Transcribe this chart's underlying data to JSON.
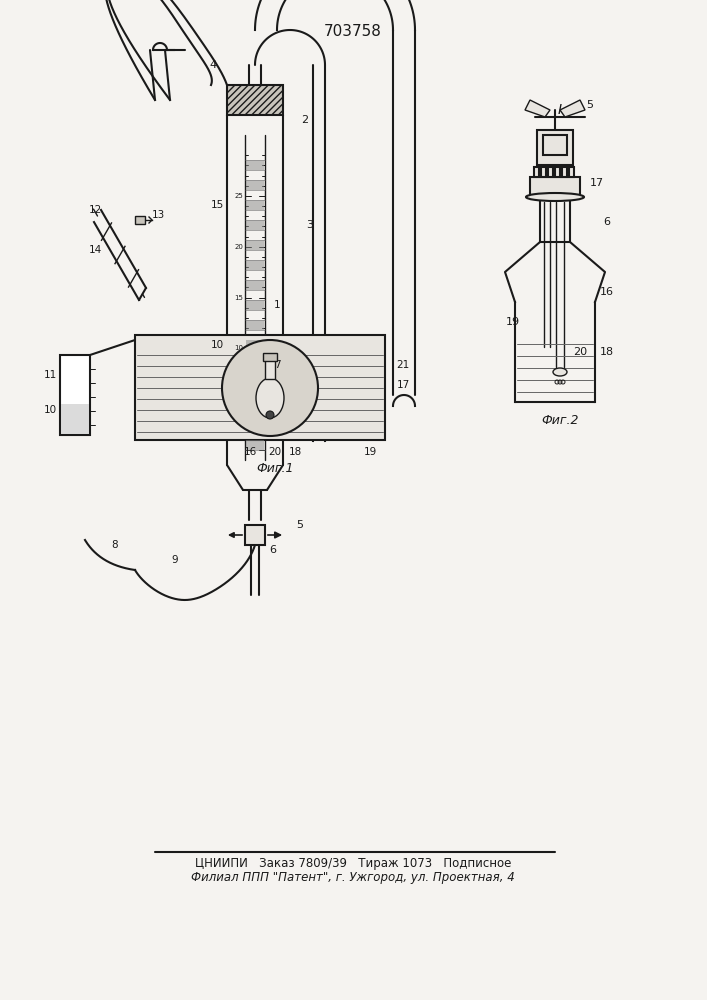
{
  "title": "703758",
  "footer_line1": "ЦНИИПИ   Заказ 7809/39   Тираж 1073   Подписное",
  "footer_line2": "Филиал ППП \"Патент\", г. Ужгород, ул. Проектная, 4",
  "fig1_label": "Фиг.1",
  "fig2_label": "Фиг.2",
  "bg_color": "#f5f3f0",
  "line_color": "#1a1a1a",
  "hatch_color": "#555555",
  "gray_fill": "#c8c4bc",
  "light_fill": "#e8e5e0",
  "water_lines": "#777777"
}
